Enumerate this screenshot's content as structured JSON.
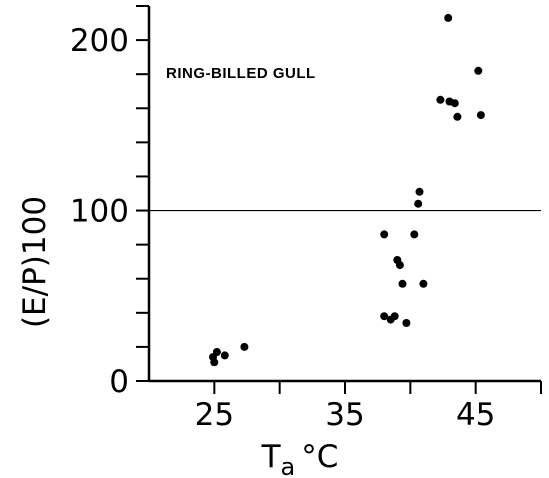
{
  "chart_data": {
    "type": "scatter",
    "annotation": "RING-BILLED GULL",
    "xlabel": {
      "main": "T",
      "sub": "a",
      "unit": "°C"
    },
    "ylabel": "(E/P)100",
    "xlim": [
      20,
      50
    ],
    "ylim": [
      0,
      220
    ],
    "xticks_labeled": [
      25,
      35,
      45
    ],
    "yticks_labeled": [
      0,
      100,
      200
    ],
    "x_tick_interval": 5,
    "y_tick_interval": 20,
    "reference_line_y": 100,
    "points": [
      {
        "x": 24.9,
        "y": 14
      },
      {
        "x": 25.0,
        "y": 11
      },
      {
        "x": 25.2,
        "y": 17
      },
      {
        "x": 25.8,
        "y": 15
      },
      {
        "x": 27.3,
        "y": 20
      },
      {
        "x": 38.0,
        "y": 86
      },
      {
        "x": 38.0,
        "y": 38
      },
      {
        "x": 38.5,
        "y": 36
      },
      {
        "x": 38.8,
        "y": 38
      },
      {
        "x": 39.0,
        "y": 71
      },
      {
        "x": 39.2,
        "y": 68
      },
      {
        "x": 39.4,
        "y": 57
      },
      {
        "x": 39.7,
        "y": 34
      },
      {
        "x": 40.3,
        "y": 86
      },
      {
        "x": 40.6,
        "y": 104
      },
      {
        "x": 40.7,
        "y": 111
      },
      {
        "x": 41.0,
        "y": 57
      },
      {
        "x": 42.3,
        "y": 165
      },
      {
        "x": 42.9,
        "y": 213
      },
      {
        "x": 43.0,
        "y": 164
      },
      {
        "x": 43.4,
        "y": 163
      },
      {
        "x": 43.6,
        "y": 155
      },
      {
        "x": 45.2,
        "y": 182
      },
      {
        "x": 45.4,
        "y": 156
      }
    ]
  }
}
